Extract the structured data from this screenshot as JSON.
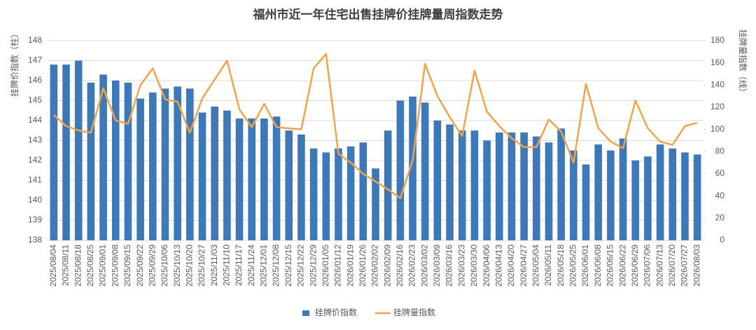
{
  "chart_data": {
    "type": "bar-line",
    "title": "福州市近一年住宅出售挂牌价挂牌量周指数走势",
    "y_label": "挂牌价指数（柱）",
    "y2_label": "挂牌量指数（线）",
    "categories": [
      "2025/08/04",
      "2025/08/11",
      "2025/08/18",
      "2025/08/25",
      "2025/09/01",
      "2025/09/08",
      "2025/09/15",
      "2025/09/22",
      "2025/09/29",
      "2025/10/06",
      "2025/10/13",
      "2025/10/20",
      "2025/10/27",
      "2025/11/03",
      "2025/11/10",
      "2025/11/17",
      "2025/11/24",
      "2025/12/01",
      "2025/12/08",
      "2025/12/15",
      "2025/12/22",
      "2025/12/29",
      "2026/01/05",
      "2026/01/12",
      "2026/01/19",
      "2026/01/26",
      "2026/02/02",
      "2026/02/09",
      "2026/02/16",
      "2026/02/23",
      "2026/03/02",
      "2026/03/09",
      "2026/03/16",
      "2026/03/23",
      "2026/03/30",
      "2026/04/06",
      "2026/04/13",
      "2026/04/20",
      "2026/04/27",
      "2026/05/04",
      "2026/05/11",
      "2026/05/18",
      "2026/05/25",
      "2026/06/01",
      "2026/06/08",
      "2026/06/15",
      "2026/06/22",
      "2026/06/29",
      "2026/07/06",
      "2026/07/13",
      "2026/07/20",
      "2026/07/27",
      "2026/08/03"
    ],
    "series": [
      {
        "name": "挂牌价指数",
        "type": "bar",
        "color": "#3d78b8",
        "values": [
          146.8,
          146.8,
          147.0,
          145.9,
          146.3,
          146.0,
          145.9,
          145.1,
          145.4,
          145.6,
          145.7,
          145.6,
          144.4,
          144.7,
          144.5,
          144.1,
          144.1,
          144.1,
          144.2,
          143.5,
          143.3,
          142.6,
          142.4,
          142.6,
          142.7,
          142.9,
          141.6,
          143.5,
          145.0,
          145.2,
          144.9,
          144.0,
          143.8,
          143.5,
          143.5,
          143.0,
          143.4,
          143.4,
          143.4,
          143.2,
          142.9,
          143.6,
          142.5,
          141.8,
          142.8,
          142.5,
          143.1,
          142.0,
          142.2,
          142.8,
          142.6,
          142.4,
          142.3
        ]
      },
      {
        "name": "挂牌量指数",
        "type": "line",
        "axis": "y2",
        "color": "#f0a448",
        "values": [
          113,
          103,
          99,
          97,
          137,
          108,
          105,
          140,
          155,
          127,
          125,
          97,
          128,
          145,
          162,
          118,
          102,
          123,
          102,
          101,
          100,
          155,
          168,
          78,
          70,
          60,
          53,
          46,
          38,
          72,
          159,
          130,
          111,
          94,
          153,
          116,
          103,
          92,
          84,
          84,
          109,
          98,
          70,
          141,
          101,
          89,
          83,
          126,
          101,
          89,
          86,
          103,
          106
        ]
      }
    ],
    "ylim": [
      138,
      148
    ],
    "yticks": [
      138,
      139,
      140,
      141,
      142,
      143,
      144,
      145,
      146,
      147,
      148
    ],
    "y2lim": [
      0,
      180
    ],
    "y2ticks": [
      0,
      20,
      40,
      60,
      80,
      100,
      120,
      140,
      160,
      180
    ],
    "grid": true,
    "legend": "bottom"
  }
}
